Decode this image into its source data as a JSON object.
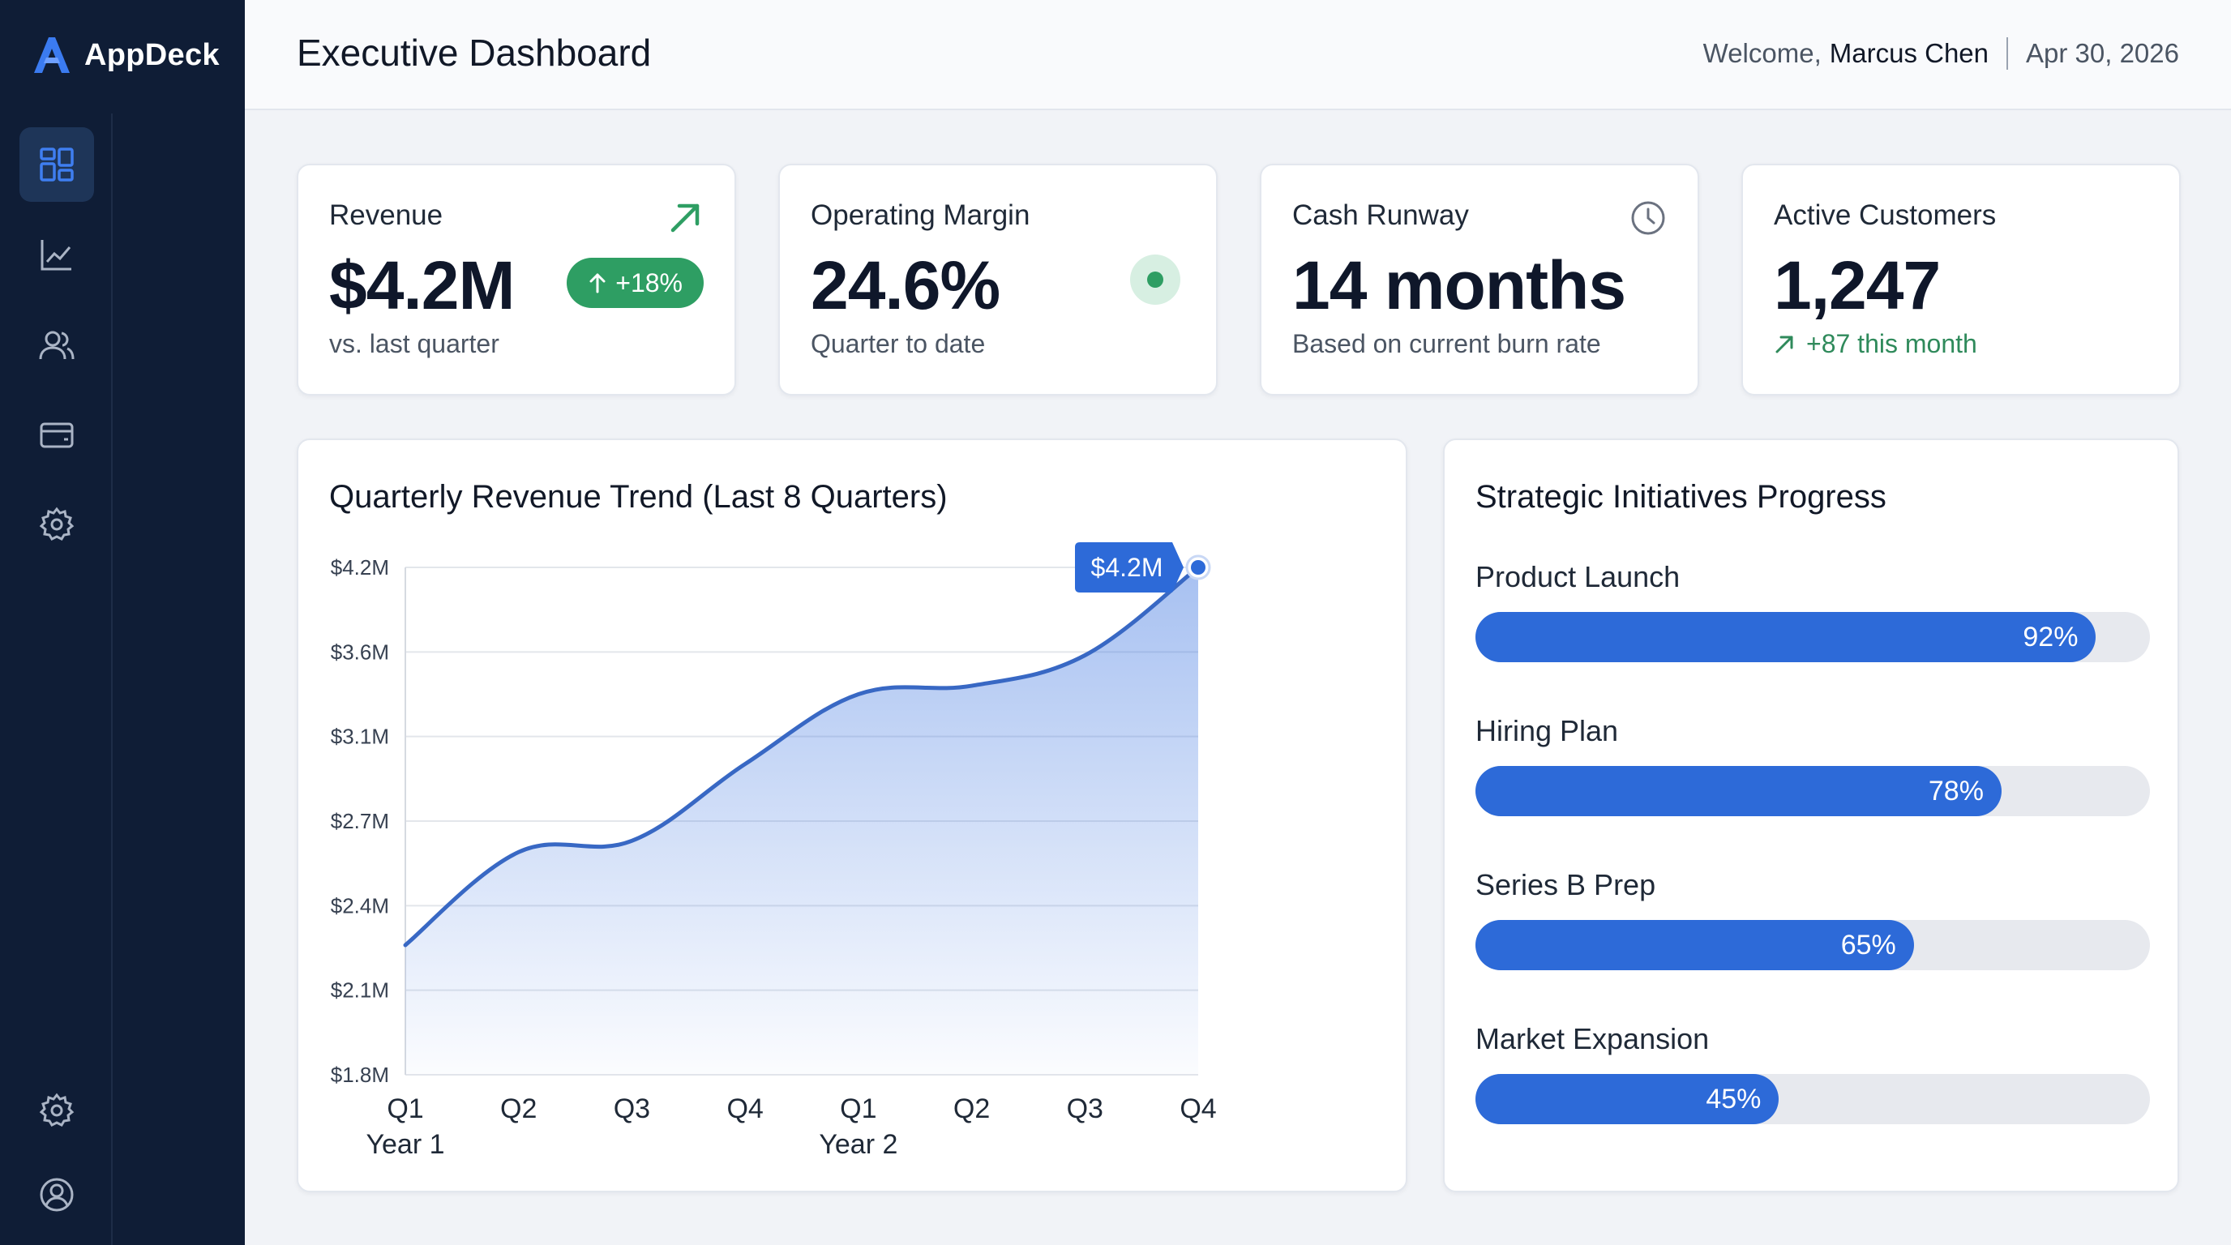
{
  "app": {
    "name": "AppDeck"
  },
  "sidebar": {
    "nav": [
      {
        "icon": "dashboard-icon",
        "active": true
      },
      {
        "icon": "line-chart-icon",
        "active": false
      },
      {
        "icon": "users-icon",
        "active": false
      },
      {
        "icon": "wallet-icon",
        "active": false
      },
      {
        "icon": "gear-icon",
        "active": false
      }
    ],
    "bottom": [
      {
        "icon": "gear-icon"
      },
      {
        "icon": "user-profile-icon"
      }
    ]
  },
  "header": {
    "title": "Executive Dashboard",
    "welcome": "Welcome,",
    "user": "Marcus Chen",
    "date": "Apr 30, 2026"
  },
  "kpis": {
    "revenue": {
      "label": "Revenue",
      "value": "$4.2M",
      "badge": "+18%",
      "sub": "vs. last quarter",
      "icon": "arrow-up-right-icon"
    },
    "margin": {
      "label": "Operating Margin",
      "value": "24.6%",
      "sub": "Quarter to date",
      "icon": "status-dot-icon"
    },
    "runway": {
      "label": "Cash Runway",
      "value": "14 months",
      "sub": "Based on current burn rate",
      "icon": "clock-icon"
    },
    "customers": {
      "label": "Active Customers",
      "value": "1,247",
      "sub": "+87 this month",
      "icon": "arrow-up-right-icon"
    }
  },
  "colors": {
    "accent": "#2d6ad8",
    "line": "#3868c4",
    "positive": "#2e9e63",
    "sidebar": "#0f1d36"
  },
  "chart_data": {
    "type": "area",
    "title": "Quarterly Revenue Trend (Last 8 Quarters)",
    "categories": [
      "Q1",
      "Q2",
      "Q3",
      "Q4",
      "Q1",
      "Q2",
      "Q3",
      "Q4"
    ],
    "year_labels": [
      {
        "index": 0,
        "label": "Year 1"
      },
      {
        "index": 4,
        "label": "Year 2"
      }
    ],
    "y_ticks": [
      "$1.8M",
      "$2.1M",
      "$2.4M",
      "$2.7M",
      "$3.1M",
      "$3.6M",
      "$4.2M"
    ],
    "values": [
      2.26,
      2.59,
      2.63,
      2.97,
      3.35,
      3.4,
      3.58,
      4.2
    ],
    "highlight": {
      "index": 7,
      "label": "$4.2M"
    },
    "grid": true,
    "legend": "none"
  },
  "initiatives": {
    "title": "Strategic Initiatives Progress",
    "items": [
      {
        "label": "Product Launch",
        "pct": 92,
        "pct_label": "92%"
      },
      {
        "label": "Hiring Plan",
        "pct": 78,
        "pct_label": "78%"
      },
      {
        "label": "Series B Prep",
        "pct": 65,
        "pct_label": "65%"
      },
      {
        "label": "Market Expansion",
        "pct": 45,
        "pct_label": "45%"
      }
    ]
  }
}
